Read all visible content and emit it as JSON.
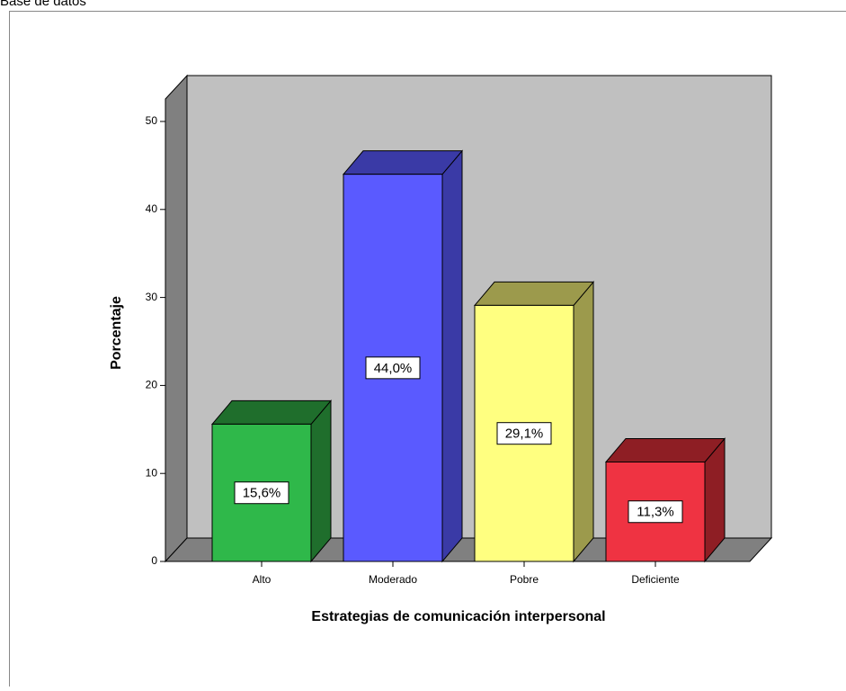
{
  "page_header": "Base de datos",
  "chart_data": {
    "type": "bar3d",
    "categories": [
      "Alto",
      "Moderado",
      "Pobre",
      "Deficiente"
    ],
    "values": [
      15.6,
      44.0,
      29.1,
      11.3
    ],
    "value_labels": [
      "15,6%",
      "44,0%",
      "29,1%",
      "11,3%"
    ],
    "colors": [
      "#2fb84a",
      "#5a5aff",
      "#ffff80",
      "#ef3342"
    ],
    "side_colors": [
      "#1f6e2c",
      "#3a3aa6",
      "#9c9a4c",
      "#8e1e24"
    ],
    "ylim": [
      0,
      50
    ],
    "yticks": [
      0,
      10,
      20,
      30,
      40,
      50
    ],
    "xlabel": "Estrategias de comunicación interpersonal",
    "ylabel": "Porcentaje"
  }
}
